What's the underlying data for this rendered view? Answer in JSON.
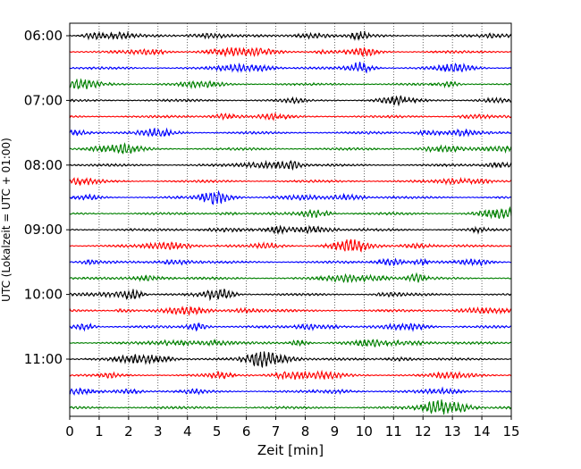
{
  "chart_data": {
    "type": "line",
    "subtype": "seismogram-helicorder",
    "xlabel": "Zeit  [min]",
    "ylabel": "UTC (Lokalzeit = UTC + 01:00)",
    "xlim": [
      0,
      15
    ],
    "x_ticks": [
      "0",
      "1",
      "2",
      "3",
      "4",
      "5",
      "6",
      "7",
      "8",
      "9",
      "10",
      "11",
      "12",
      "13",
      "14",
      "15"
    ],
    "y_ticks": [
      "06:00",
      "07:00",
      "08:00",
      "09:00",
      "10:00",
      "11:00"
    ],
    "vertical_grid": true,
    "grid_style": "dotted",
    "trace_interval_minutes": 15,
    "trace_start": "06:00",
    "trace_count": 24,
    "color_cycle": [
      "#000000",
      "#ff0000",
      "#0000ff",
      "#008000"
    ]
  }
}
